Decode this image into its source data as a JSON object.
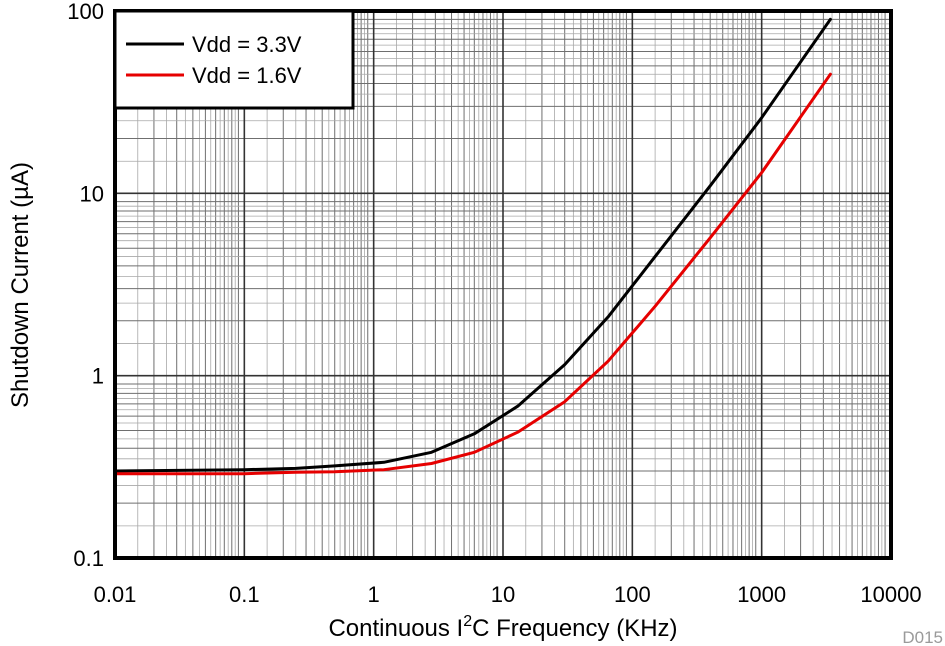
{
  "chart_data": {
    "type": "line",
    "xlabel_main": "Continuous I",
    "xlabel_sup": "2",
    "xlabel_rest": "C Frequency (KHz)",
    "ylabel": "Shutdown Current (µA)",
    "xscale": "log",
    "yscale": "log",
    "xlim": [
      0.01,
      10000
    ],
    "ylim": [
      0.1,
      100
    ],
    "x_tick_labels": [
      "0.01",
      "0.1",
      "1",
      "10",
      "100",
      "1000",
      "10000"
    ],
    "y_tick_labels": [
      "0.1",
      "1",
      "10",
      "100"
    ],
    "grid": true,
    "legend_position": "top-left",
    "figure_id": "D015",
    "series": [
      {
        "name": "Vdd = 3.3V",
        "color": "#000000",
        "x": [
          0.01,
          0.1,
          0.25,
          0.5,
          1.2,
          2.8,
          6,
          13,
          30,
          65,
          150,
          400,
          1000,
          3400
        ],
        "y": [
          0.3,
          0.305,
          0.31,
          0.32,
          0.335,
          0.38,
          0.48,
          0.68,
          1.15,
          2.1,
          4.5,
          11,
          26,
          90
        ]
      },
      {
        "name": "Vdd = 1.6V",
        "color": "#e60000",
        "x": [
          0.01,
          0.1,
          0.25,
          0.5,
          1.2,
          2.8,
          6,
          13,
          30,
          65,
          150,
          400,
          1000,
          3400
        ],
        "y": [
          0.29,
          0.29,
          0.295,
          0.297,
          0.305,
          0.33,
          0.38,
          0.49,
          0.72,
          1.2,
          2.4,
          5.7,
          13,
          45
        ]
      }
    ]
  }
}
